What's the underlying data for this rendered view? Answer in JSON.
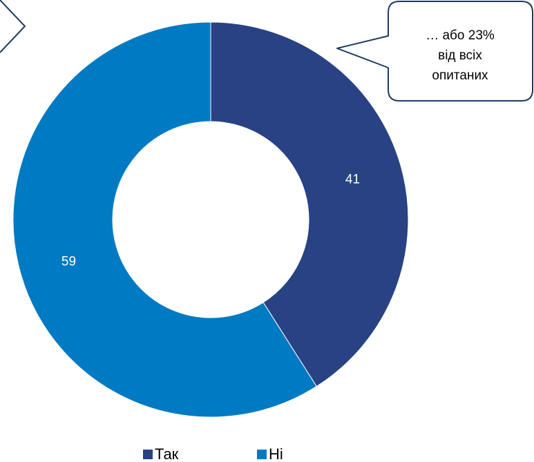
{
  "chart_data": {
    "type": "pie",
    "variant": "donut",
    "categories": [
      "Так",
      "Ні"
    ],
    "values": [
      41,
      59
    ],
    "colors": [
      "#284283",
      "#007AC2"
    ],
    "title": "",
    "legend_position": "bottom",
    "data_labels": [
      "41",
      "59"
    ]
  },
  "callout": {
    "lines": [
      "… або 23%",
      "від всіх",
      "опитаних"
    ]
  }
}
